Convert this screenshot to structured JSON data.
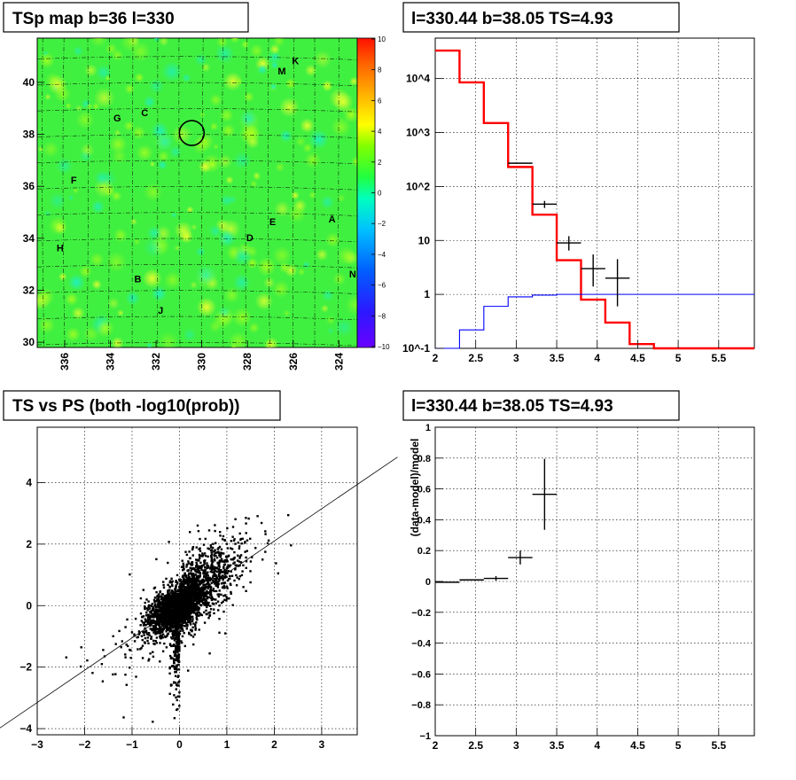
{
  "chart_data": [
    {
      "id": "tsmap",
      "type": "heatmap",
      "title": "TSp map b=36 l=330",
      "x_ticks": [
        "336",
        "334",
        "332",
        "330",
        "328",
        "326",
        "324"
      ],
      "y_ticks": [
        "30",
        "32",
        "34",
        "36",
        "38",
        "40"
      ],
      "xlim": [
        337.2,
        323.2
      ],
      "ylim": [
        29.8,
        41.7
      ],
      "colorbar_ticks": [
        "10",
        "8",
        "6",
        "4",
        "2",
        "0",
        "−2",
        "−4",
        "−6",
        "−8",
        "−10"
      ],
      "colorbar_range": [
        -10,
        10
      ],
      "background_value": 0.5,
      "source_regions": [
        {
          "label": "K",
          "l": 325.9,
          "b": 40.7
        },
        {
          "label": "M",
          "l": 326.5,
          "b": 40.3
        },
        {
          "label": "C",
          "l": 332.5,
          "b": 38.7
        },
        {
          "label": "G",
          "l": 333.7,
          "b": 38.5
        },
        {
          "label": "F",
          "l": 335.6,
          "b": 36.1
        },
        {
          "label": "E",
          "l": 326.9,
          "b": 34.5
        },
        {
          "label": "A",
          "l": 324.3,
          "b": 34.6
        },
        {
          "label": "D",
          "l": 327.9,
          "b": 33.9
        },
        {
          "label": "H",
          "l": 336.2,
          "b": 33.5
        },
        {
          "label": "B",
          "l": 332.8,
          "b": 32.3
        },
        {
          "label": "N",
          "l": 323.4,
          "b": 32.5
        },
        {
          "label": "J",
          "l": 331.8,
          "b": 31.1
        }
      ],
      "marker": {
        "l": 330.44,
        "b": 38.05
      }
    },
    {
      "id": "spectrum",
      "type": "line",
      "title": "l=330.44 b=38.05 TS=4.93",
      "x_ticks": [
        "2",
        "2.5",
        "3",
        "3.5",
        "4",
        "4.5",
        "5",
        "5.5"
      ],
      "y_ticks": [
        "10^-1",
        "1",
        "10",
        "10^2",
        "10^3",
        "10^4"
      ],
      "xlim": [
        2.0,
        5.94
      ],
      "ylim_log10": [
        -1.0,
        4.75
      ],
      "y_scale": "log",
      "series": [
        {
          "color": "#ff0000",
          "edges": [
            2.0,
            2.3,
            2.6,
            2.9,
            3.2,
            3.5,
            3.8,
            4.1,
            4.4,
            4.7,
            5.94
          ],
          "values": [
            33000,
            8500,
            1500,
            230,
            30,
            4.3,
            0.8,
            0.3,
            0.12,
            0.1
          ]
        },
        {
          "color": "#0000ff",
          "edges": [
            2.0,
            2.3,
            2.6,
            2.9,
            3.2,
            3.5,
            5.94
          ],
          "values": [
            0.06,
            0.22,
            0.6,
            0.9,
            0.97,
            1.0
          ]
        }
      ],
      "points": [
        {
          "x": 3.05,
          "y": 270,
          "xerr": 0.15,
          "ylo": 270,
          "yhi": 270
        },
        {
          "x": 3.35,
          "y": 47,
          "xerr": 0.15,
          "ylo": 40,
          "yhi": 54
        },
        {
          "x": 3.65,
          "y": 9,
          "xerr": 0.15,
          "ylo": 6.5,
          "yhi": 12
        },
        {
          "x": 3.95,
          "y": 3,
          "xerr": 0.15,
          "ylo": 1.4,
          "yhi": 5.5
        },
        {
          "x": 4.25,
          "y": 2,
          "xerr": 0.15,
          "ylo": 0.6,
          "yhi": 4.5
        }
      ]
    },
    {
      "id": "ts_vs_ps",
      "type": "scatter",
      "title": "TS vs PS (both -log10(prob))",
      "x_ticks": [
        "−3",
        "−2",
        "−1",
        "0",
        "1",
        "2",
        "3"
      ],
      "y_ticks": [
        "−4",
        "−2",
        "0",
        "2",
        "4"
      ],
      "xlim": [
        -3.0,
        3.75
      ],
      "ylim": [
        -4.2,
        5.8
      ],
      "fit_line": {
        "slope": 1.05,
        "intercept": 0.0
      }
    },
    {
      "id": "ratio",
      "type": "scatter",
      "title": "l=330.44 b=38.05 TS=4.93",
      "ylabel": "(data-model)/model",
      "x_ticks": [
        "2",
        "2.5",
        "3",
        "3.5",
        "4",
        "4.5",
        "5",
        "5.5"
      ],
      "y_ticks": [
        "−1",
        "−0.8",
        "−0.6",
        "−0.4",
        "−0.2",
        "0",
        "0.2",
        "0.4",
        "0.6",
        "0.8",
        "1"
      ],
      "xlim": [
        2.0,
        5.94
      ],
      "ylim": [
        -1.0,
        1.0
      ],
      "points": [
        {
          "x": 2.15,
          "y": -0.005,
          "xerr": 0.15,
          "yerr": 0.0
        },
        {
          "x": 2.45,
          "y": 0.01,
          "xerr": 0.15,
          "yerr": 0.0
        },
        {
          "x": 2.75,
          "y": 0.02,
          "xerr": 0.15,
          "yerr": 0.015
        },
        {
          "x": 3.05,
          "y": 0.155,
          "xerr": 0.15,
          "yerr": 0.045
        },
        {
          "x": 3.35,
          "y": 0.565,
          "xerr": 0.15,
          "yerr": 0.23
        }
      ]
    }
  ]
}
